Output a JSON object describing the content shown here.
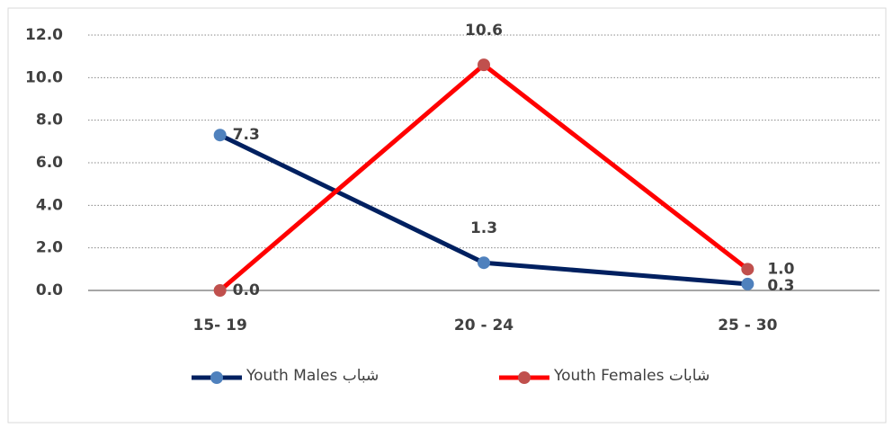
{
  "chart_data": {
    "type": "line",
    "categories": [
      "15- 19",
      "20 - 24",
      "25 - 30"
    ],
    "series": [
      {
        "name": "Youth Males  شباب",
        "color": "#002060",
        "marker_color": "#4f81bd",
        "values": [
          7.3,
          1.3,
          0.3
        ],
        "value_labels": [
          "7.3",
          "1.3",
          "0.3"
        ]
      },
      {
        "name": "Youth Females شابات",
        "color": "#ff0000",
        "marker_color": "#c0504d",
        "values": [
          0,
          10.6,
          1.0
        ],
        "value_labels": [
          "0.0",
          "10.6",
          "1.0"
        ]
      }
    ],
    "ylim": [
      0,
      12
    ],
    "yticks": [
      {
        "value": 0,
        "label": "0.0"
      },
      {
        "value": 2,
        "label": "2.0"
      },
      {
        "value": 4,
        "label": "4.0"
      },
      {
        "value": 6,
        "label": "6.0"
      },
      {
        "value": 8,
        "label": "8.0"
      },
      {
        "value": 10,
        "label": "10.0"
      },
      {
        "value": 12,
        "label": "12.0"
      }
    ],
    "grid": true,
    "legend": "bottom"
  }
}
